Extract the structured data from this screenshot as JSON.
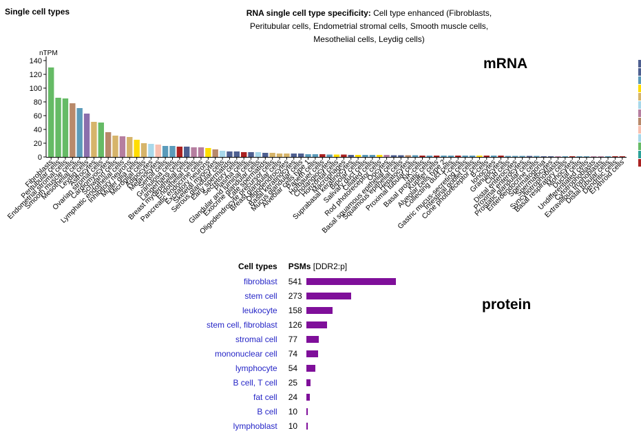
{
  "header": {
    "section_title": "Single cell types",
    "spec_label": "RNA single cell type specificity:",
    "spec_value_lines": [
      "Cell type enhanced (Fibroblasts,",
      "Peritubular cells, Endometrial stromal cells, Smooth muscle cells,",
      "Mesothelial cells, Leydig cells)"
    ]
  },
  "labels": {
    "mrna": "mRNA",
    "protein": "protein"
  },
  "chart_data": {
    "type": "bar",
    "ylabel": "nTPM",
    "ylim": [
      0,
      140
    ],
    "yticks": [
      0,
      20,
      40,
      60,
      80,
      100,
      120,
      140
    ],
    "categories": [
      "Fibroblasts",
      "Peritubular cells",
      "Endometrial stromal cells",
      "Smooth muscle cells",
      "Mesothelial cells",
      "Leydig cells",
      "Astrocytes",
      "Ovarian stromal cells",
      "Cardiomyocytes",
      "Schwann cells",
      "Lymphatic endothelial cells",
      "Inhibitory neurons",
      "Muller glia cells",
      "Microglial cells",
      "Adipocytes",
      "Melanocytes",
      "Sertoli cells",
      "Granulosa cells",
      "Langerhans cells",
      "Breast myoepithelial cells",
      "Endothelial cells",
      "Pancreatic endocrine cells",
      "Excitatory neurons",
      "Skeletal myocytes",
      "Serous glandular cells",
      "Early spermatids",
      "Secretory cells",
      "Plasma cells",
      "Glandular and luminal cells",
      "Exocrine glandular cells",
      "Late spermatids",
      "Oligodendrocyte precursor cells",
      "Breast glandular cells",
      "Oligodendrocytes",
      "Basal keratinocytes",
      "Mucus glandular cells",
      "Alveolar cells type 1",
      "Paneth cells",
      "Hofbauer cells",
      "Cholangiocytes",
      "Horizontal cells",
      "Macrophages",
      "Suprabasal keratinocytes",
      "Bipolar cells",
      "Salivary duct cells",
      "Ciliated cells",
      "Rod photoreceptor cells",
      "Oocytes",
      "Basal squamous epithelial cells",
      "Squamous epithelial cells",
      "Hepatocytes",
      "Proximal tubular cells",
      "NK-cells",
      "Basal prostatic cells",
      "Kupffer cells",
      "Alveolar cells type 2",
      "Collecting duct cells",
      "T-cells",
      "Gastric mucus-secreting cells",
      "Intestinal goblet cells",
      "Cone photoreceptor cells",
      "B-cells",
      "Ionocytes",
      "Granulocytes",
      "Club cells",
      "Distal enterocytes",
      "Proximal enterocytes",
      "Prostatic glandular cells",
      "Enteroendocrine cells",
      "Spermatogonia",
      "Spermatocytes",
      "Syncytiotrophoblasts",
      "Basal respiratory cells",
      "Monocytes",
      "Ductal cells",
      "Undifferentiated cells",
      "Cytotrophoblasts",
      "Extravillous trophoblasts",
      "Distal tubular cells",
      "Dendritic cells",
      "Erythroid cells"
    ],
    "values": [
      130,
      86,
      85,
      78,
      71,
      63,
      51,
      50,
      36,
      31,
      30,
      29,
      25,
      20,
      19,
      18,
      16,
      16,
      15,
      15,
      14,
      14,
      13,
      11,
      9,
      8,
      8,
      7,
      7,
      7,
      6,
      6,
      5,
      5,
      5,
      5,
      4,
      4,
      4,
      3.5,
      3.5,
      3.5,
      3,
      3,
      3,
      3,
      3,
      3,
      2.5,
      2.5,
      2.5,
      2.5,
      2,
      2,
      2,
      2,
      2,
      2,
      2,
      2,
      2,
      2,
      2,
      2,
      1.5,
      1.5,
      1.5,
      1.5,
      1.5,
      1,
      1,
      1,
      1,
      1,
      1,
      1,
      1,
      1,
      1,
      1,
      1
    ],
    "colors": [
      "#66bb66",
      "#66bb66",
      "#66bb66",
      "#b8896a",
      "#5b9bba",
      "#8b6fac",
      "#d6b46a",
      "#66bb66",
      "#b8896a",
      "#d6b46a",
      "#b57ea0",
      "#d6b46a",
      "#ffdd00",
      "#d6b46a",
      "#a8d8ea",
      "#f8c0b0",
      "#5b9bba",
      "#5b9bba",
      "#aa2222",
      "#4e5f90",
      "#b57ea0",
      "#b57ea0",
      "#ffdd00",
      "#b8896a",
      "#a8d8ea",
      "#4e5f90",
      "#4e5f90",
      "#aa2222",
      "#4e5f90",
      "#a8d8ea",
      "#4e5f90",
      "#d6b46a",
      "#d6b46a",
      "#d6b46a",
      "#4e5f90",
      "#4e5f90",
      "#5b9bba",
      "#5b9bba",
      "#aa2222",
      "#5b9bba",
      "#ffdd00",
      "#aa2222",
      "#4e5f90",
      "#ffdd00",
      "#5b9bba",
      "#5b9bba",
      "#ffdd00",
      "#b57ea0",
      "#4e5f90",
      "#4e5f90",
      "#b8896a",
      "#5b9bba",
      "#aa2222",
      "#5b9bba",
      "#aa2222",
      "#5b9bba",
      "#5b9bba",
      "#aa2222",
      "#5b9bba",
      "#5b9bba",
      "#ffdd00",
      "#aa2222",
      "#5b9bba",
      "#aa2222",
      "#5b9bba",
      "#5b9bba",
      "#5b9bba",
      "#4e5f90",
      "#5b9bba",
      "#4e5f90",
      "#4e5f90",
      "#b57ea0",
      "#5b9bba",
      "#aa2222",
      "#5b9bba",
      "#5b9bba",
      "#b57ea0",
      "#b57ea0",
      "#5b9bba",
      "#aa2222",
      "#aa2222"
    ]
  },
  "protein": {
    "headers": {
      "cell_types": "Cell types",
      "psms": "PSMs",
      "psms_note": "[DDR2:p]"
    },
    "max": 541,
    "rows": [
      {
        "label": "fibroblast",
        "value": 541
      },
      {
        "label": "stem cell",
        "value": 273
      },
      {
        "label": "leukocyte",
        "value": 158
      },
      {
        "label": "stem cell, fibroblast",
        "value": 126
      },
      {
        "label": "stromal cell",
        "value": 77
      },
      {
        "label": "mononuclear cell",
        "value": 74
      },
      {
        "label": "lymphocyte",
        "value": 54
      },
      {
        "label": "B cell, T cell",
        "value": 25
      },
      {
        "label": "fat cell",
        "value": 24
      },
      {
        "label": "B cell",
        "value": 10
      },
      {
        "label": "lymphoblast",
        "value": 10
      }
    ]
  },
  "side_strip_colors": [
    "#4e5f90",
    "#4e5f90",
    "#5b9bba",
    "#ffdd00",
    "#d6b46a",
    "#a8d8ea",
    "#b57ea0",
    "#b8896a",
    "#f8c0b0",
    "#a8d8ea",
    "#66bb66",
    "#2aa198",
    "#aa2222"
  ]
}
